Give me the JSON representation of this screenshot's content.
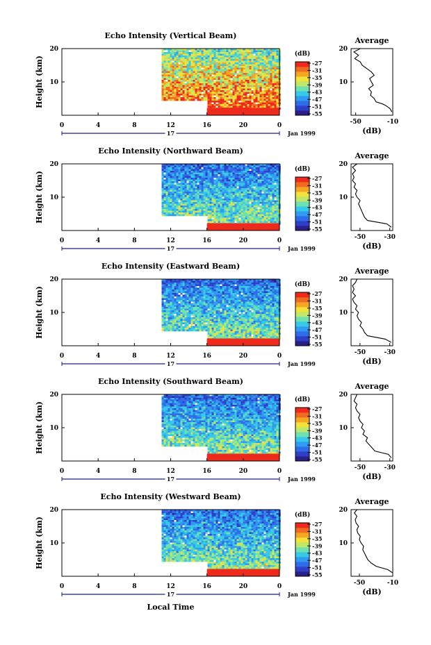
{
  "colorbar": {
    "unit": "(dB)",
    "ticks": [
      "-27",
      "-31",
      "-35",
      "-39",
      "-43",
      "-47",
      "-51",
      "-55"
    ],
    "colors": [
      "#2b1f88",
      "#2e3fc8",
      "#2f6ce8",
      "#2f9cf2",
      "#36c9e8",
      "#6fe0b0",
      "#bfe86a",
      "#f2e23a",
      "#f5a623",
      "#f06a20",
      "#ee2a1c"
    ]
  },
  "date_label": "Jan 1999",
  "day_label": "17",
  "bottom_label": "Local Time",
  "chart_data": [
    {
      "type": "heatmap",
      "title": "Echo Intensity (Vertical Beam)",
      "ylabel": "Height (km)",
      "x_ticks": [
        "0",
        "4",
        "8",
        "12",
        "16",
        "20",
        "0"
      ],
      "y_ticks": [
        "20",
        "10"
      ],
      "xlim": [
        0,
        24
      ],
      "ylim": [
        0,
        20
      ],
      "data_start_hour": 11,
      "step_hour": 16,
      "lower_limit_km": [
        2.2,
        4.5
      ],
      "average_profile": {
        "title": "Average",
        "xlabel": "(dB)",
        "x_ticks": [
          "-50",
          "-10"
        ],
        "y_ticks": [
          "20",
          "10"
        ],
        "xlim": [
          -55,
          -10
        ],
        "values": [
          [
            -11,
            1
          ],
          [
            -13,
            2
          ],
          [
            -18,
            3
          ],
          [
            -22,
            3.5
          ],
          [
            -28,
            4
          ],
          [
            -30,
            5
          ],
          [
            -34,
            6
          ],
          [
            -33,
            7
          ],
          [
            -36,
            8
          ],
          [
            -31,
            9
          ],
          [
            -33,
            10
          ],
          [
            -35,
            11
          ],
          [
            -30,
            12
          ],
          [
            -33,
            13
          ],
          [
            -38,
            14
          ],
          [
            -43,
            15
          ],
          [
            -45,
            16
          ],
          [
            -51,
            17
          ],
          [
            -47,
            18
          ],
          [
            -52,
            19
          ],
          [
            -45,
            20
          ]
        ]
      }
    },
    {
      "type": "heatmap",
      "title": "Echo Intensity (Northward Beam)",
      "ylabel": "Height (km)",
      "x_ticks": [
        "0",
        "4",
        "8",
        "12",
        "16",
        "20",
        "0"
      ],
      "y_ticks": [
        "20",
        "10"
      ],
      "xlim": [
        0,
        24
      ],
      "ylim": [
        0,
        20
      ],
      "data_start_hour": 11,
      "step_hour": 16,
      "lower_limit_km": [
        2.2,
        4.5
      ],
      "average_profile": {
        "title": "Average",
        "xlabel": "(dB)",
        "x_ticks": [
          "-50",
          "-30"
        ],
        "y_ticks": [
          "20",
          "10"
        ],
        "xlim": [
          -56,
          -28
        ],
        "values": [
          [
            -29,
            1
          ],
          [
            -32,
            2
          ],
          [
            -45,
            3
          ],
          [
            -47,
            4
          ],
          [
            -48,
            5
          ],
          [
            -49,
            6
          ],
          [
            -50,
            7
          ],
          [
            -51,
            8
          ],
          [
            -50,
            9
          ],
          [
            -52,
            10
          ],
          [
            -53,
            11
          ],
          [
            -52,
            12
          ],
          [
            -54,
            13
          ],
          [
            -53,
            14
          ],
          [
            -55,
            15
          ],
          [
            -54,
            16
          ],
          [
            -55,
            17
          ],
          [
            -53,
            18
          ],
          [
            -55,
            19
          ],
          [
            -52,
            20
          ]
        ]
      }
    },
    {
      "type": "heatmap",
      "title": "Echo Intensity (Eastward Beam)",
      "ylabel": "Height (km)",
      "x_ticks": [
        "0",
        "4",
        "8",
        "12",
        "16",
        "20",
        "0"
      ],
      "y_ticks": [
        "20",
        "10"
      ],
      "xlim": [
        0,
        24
      ],
      "ylim": [
        0,
        20
      ],
      "data_start_hour": 11,
      "step_hour": 16,
      "lower_limit_km": [
        2.2,
        4.5
      ],
      "average_profile": {
        "title": "Average",
        "xlabel": "(dB)",
        "x_ticks": [
          "-50",
          "-30"
        ],
        "y_ticks": [
          "20",
          "10"
        ],
        "xlim": [
          -56,
          -28
        ],
        "values": [
          [
            -29,
            1
          ],
          [
            -33,
            2
          ],
          [
            -45,
            3
          ],
          [
            -47,
            4
          ],
          [
            -48,
            5
          ],
          [
            -50,
            6
          ],
          [
            -49,
            7
          ],
          [
            -51,
            8
          ],
          [
            -52,
            9
          ],
          [
            -51,
            10
          ],
          [
            -53,
            11
          ],
          [
            -52,
            12
          ],
          [
            -54,
            13
          ],
          [
            -55,
            14
          ],
          [
            -53,
            15
          ],
          [
            -55,
            16
          ],
          [
            -54,
            17
          ],
          [
            -55,
            18
          ],
          [
            -53,
            19
          ],
          [
            -52,
            20
          ]
        ]
      }
    },
    {
      "type": "heatmap",
      "title": "Echo Intensity (Southward Beam)",
      "ylabel": "Height (km)",
      "x_ticks": [
        "0",
        "4",
        "8",
        "12",
        "16",
        "20",
        "0"
      ],
      "y_ticks": [
        "20",
        "10"
      ],
      "xlim": [
        0,
        24
      ],
      "ylim": [
        0,
        20
      ],
      "data_start_hour": 11,
      "step_hour": 16,
      "lower_limit_km": [
        2.2,
        4.5
      ],
      "average_profile": {
        "title": "Average",
        "xlabel": "(dB)",
        "x_ticks": [
          "-50",
          "-30"
        ],
        "y_ticks": [
          "20",
          "10"
        ],
        "xlim": [
          -56,
          -28
        ],
        "values": [
          [
            -29,
            1
          ],
          [
            -31,
            2
          ],
          [
            -40,
            3
          ],
          [
            -42,
            4
          ],
          [
            -44,
            5
          ],
          [
            -46,
            6
          ],
          [
            -45,
            7
          ],
          [
            -48,
            8
          ],
          [
            -47,
            9
          ],
          [
            -49,
            10
          ],
          [
            -48,
            11
          ],
          [
            -50,
            12
          ],
          [
            -51,
            13
          ],
          [
            -50,
            14
          ],
          [
            -52,
            15
          ],
          [
            -53,
            16
          ],
          [
            -52,
            17
          ],
          [
            -54,
            18
          ],
          [
            -53,
            19
          ],
          [
            -52,
            20
          ]
        ]
      }
    },
    {
      "type": "heatmap",
      "title": "Echo Intensity (Westward Beam)",
      "ylabel": "Height (km)",
      "x_ticks": [
        "0",
        "4",
        "8",
        "12",
        "16",
        "20",
        "0"
      ],
      "y_ticks": [
        "20",
        "10"
      ],
      "xlim": [
        0,
        24
      ],
      "ylim": [
        0,
        20
      ],
      "data_start_hour": 11,
      "step_hour": 16,
      "lower_limit_km": [
        2.2,
        4.5
      ],
      "average_profile": {
        "title": "Average",
        "xlabel": "(dB)",
        "x_ticks": [
          "-50",
          "-10"
        ],
        "y_ticks": [
          "20",
          "10"
        ],
        "xlim": [
          -60,
          -10
        ],
        "values": [
          [
            -10,
            1
          ],
          [
            -16,
            2
          ],
          [
            -30,
            3
          ],
          [
            -36,
            4
          ],
          [
            -40,
            5
          ],
          [
            -42,
            6
          ],
          [
            -44,
            7
          ],
          [
            -46,
            8
          ],
          [
            -45,
            9
          ],
          [
            -48,
            10
          ],
          [
            -50,
            11
          ],
          [
            -49,
            12
          ],
          [
            -52,
            13
          ],
          [
            -53,
            14
          ],
          [
            -51,
            15
          ],
          [
            -54,
            16
          ],
          [
            -55,
            17
          ],
          [
            -53,
            18
          ],
          [
            -56,
            19
          ],
          [
            -53,
            20
          ]
        ]
      }
    }
  ]
}
